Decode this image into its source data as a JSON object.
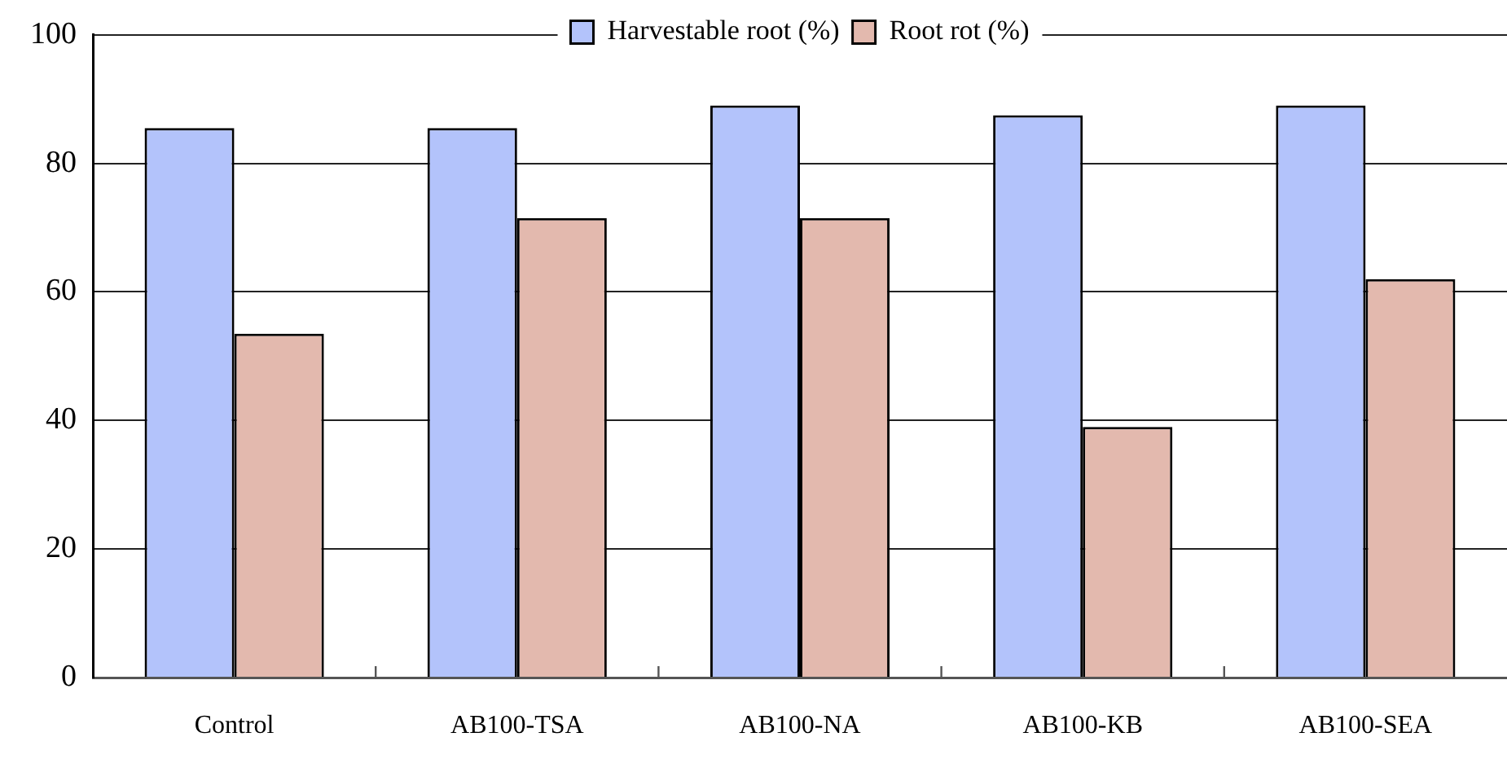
{
  "chart_data": {
    "type": "bar",
    "categories": [
      "Control",
      "AB100-TSA",
      "AB100-NA",
      "AB100-KB",
      "AB100-SEA"
    ],
    "series": [
      {
        "name": "Harvestable root (%)",
        "color": "#b3c3fb",
        "values": [
          85.5,
          85.5,
          89,
          87.5,
          89
        ]
      },
      {
        "name": "Root rot (%)",
        "color": "#e3b9ae",
        "values": [
          53.5,
          71.5,
          71.5,
          39,
          62
        ]
      }
    ],
    "ylim": [
      0,
      100
    ],
    "yticks": [
      0,
      20,
      40,
      60,
      80,
      100
    ],
    "grid": "y",
    "legend": "top"
  }
}
